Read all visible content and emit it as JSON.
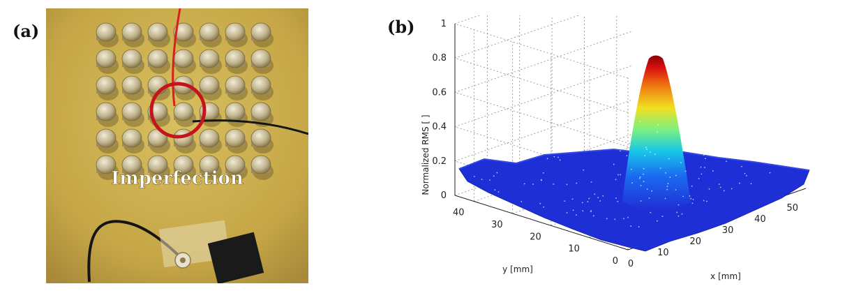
{
  "panels": {
    "a": {
      "label": "(a)",
      "annotation": "Imperfection"
    },
    "b": {
      "label": "(b)"
    }
  },
  "colors": {
    "plate": "#c9ac4c",
    "highlight_circle": "#c4141c",
    "surface_base": "#1f2fd6",
    "peak_top": "#8b0000"
  },
  "chart_data": {
    "type": "surface",
    "title": "",
    "zlabel": "Normalized RMS [ ]",
    "xlabel": "x [mm]",
    "ylabel": "y [mm]",
    "zlim": [
      0,
      1
    ],
    "xlim": [
      0,
      55
    ],
    "ylim": [
      0,
      45
    ],
    "z_ticks": [
      "0",
      "0.2",
      "0.4",
      "0.6",
      "0.8",
      "1"
    ],
    "x_ticks": [
      "0",
      "10",
      "20",
      "30",
      "40",
      "50"
    ],
    "y_ticks": [
      "0",
      "10",
      "20",
      "30",
      "40"
    ],
    "peak": {
      "x": 28,
      "y": 22,
      "value": 0.82
    },
    "baseline_level": 0.08,
    "grid": true,
    "colormap": "jet"
  }
}
